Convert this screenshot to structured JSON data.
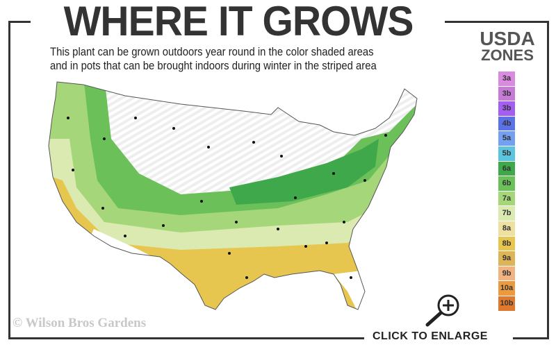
{
  "header": {
    "title": "WHERE IT GROWS",
    "subtitle_line1": "This plant can be grown outdoors year round in the color shaded areas",
    "subtitle_line2": "and in pots that can be brought indoors during winter in the striped area"
  },
  "legend": {
    "title_line1": "USDA",
    "title_line2": "ZONES",
    "zones": [
      {
        "label": "3a",
        "color": "#d98be0"
      },
      {
        "label": "3b",
        "color": "#c77ad6"
      },
      {
        "label": "3b",
        "color": "#a45ef0"
      },
      {
        "label": "4b",
        "color": "#5b72e6"
      },
      {
        "label": "5a",
        "color": "#74a0f2"
      },
      {
        "label": "5b",
        "color": "#5cc4df"
      },
      {
        "label": "6a",
        "color": "#3fa84a"
      },
      {
        "label": "6b",
        "color": "#6cc05a"
      },
      {
        "label": "7a",
        "color": "#a6d67a"
      },
      {
        "label": "7b",
        "color": "#dbeab0"
      },
      {
        "label": "8a",
        "color": "#ede0a0"
      },
      {
        "label": "8b",
        "color": "#e7c650"
      },
      {
        "label": "9a",
        "color": "#ddb458"
      },
      {
        "label": "9b",
        "color": "#f0b482"
      },
      {
        "label": "10a",
        "color": "#eb9a40"
      },
      {
        "label": "10b",
        "color": "#e0782e"
      }
    ]
  },
  "footer": {
    "copyright": "© Wilson Bros Gardens",
    "enlarge_label": "CLICK TO ENLARGE"
  }
}
